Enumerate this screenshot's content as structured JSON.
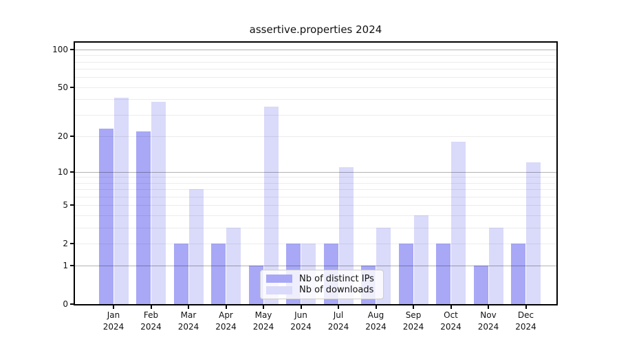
{
  "title": "assertive.properties 2024",
  "chart_data": {
    "type": "bar",
    "title": "assertive.properties 2024",
    "categories": [
      "Jan 2024",
      "Feb 2024",
      "Mar 2024",
      "Apr 2024",
      "May 2024",
      "Jun 2024",
      "Jul 2024",
      "Aug 2024",
      "Sep 2024",
      "Oct 2024",
      "Nov 2024",
      "Dec 2024"
    ],
    "x_tick_months": [
      "Jan",
      "Feb",
      "Mar",
      "Apr",
      "May",
      "Jun",
      "Jul",
      "Aug",
      "Sep",
      "Oct",
      "Nov",
      "Dec"
    ],
    "x_tick_year": "2024",
    "series": [
      {
        "name": "Nb of distinct IPs",
        "color": "#a8a8f6",
        "values": [
          23,
          22,
          2,
          2,
          1,
          2,
          2,
          1,
          2,
          2,
          1,
          2
        ]
      },
      {
        "name": "Nb of downloads",
        "color": "#dadafa",
        "values": [
          41,
          38,
          7,
          3,
          35,
          2,
          11,
          3,
          4,
          18,
          3,
          12
        ]
      }
    ],
    "xlabel": "",
    "ylabel": "",
    "yscale": "log1p",
    "ylim": [
      0,
      115
    ],
    "y_ticks": [
      0,
      1,
      2,
      5,
      10,
      20,
      50,
      100
    ],
    "y_tick_labels": [
      "0",
      "1",
      "2",
      "5",
      "10",
      "20",
      "50",
      "100"
    ],
    "y_major_grid": [
      1,
      10,
      100
    ],
    "y_minor_grid": [
      2,
      3,
      4,
      5,
      6,
      7,
      8,
      9,
      20,
      30,
      40,
      50,
      60,
      70,
      80,
      90
    ],
    "grid": true,
    "legend_position": "inside lower center"
  },
  "legend": {
    "items": [
      {
        "label": "Nb of distinct IPs",
        "color": "#a8a8f6"
      },
      {
        "label": "Nb of downloads",
        "color": "#dadafa"
      }
    ]
  },
  "colors": {
    "bar_distinct_ips": "#a8a8f6",
    "bar_downloads": "#dadafa",
    "grid_major": "#b3b3b3",
    "grid_minor": "#ececec",
    "spine": "#000000",
    "background": "#ffffff",
    "text": "#111111",
    "legend_border": "#cccccc"
  }
}
